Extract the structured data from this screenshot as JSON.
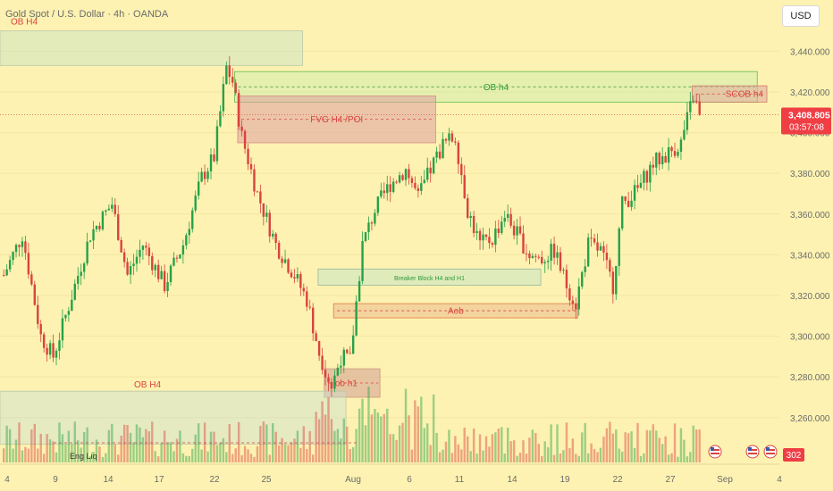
{
  "header": {
    "title": "Gold Spot / U.S. Dollar · 4h · OANDA",
    "currency": "USD"
  },
  "colors": {
    "background": "#fdf2b1",
    "up": "#26a14a",
    "down": "#d9433f",
    "price_label_bg": "#f03e45"
  },
  "price": {
    "last": "3,408.805",
    "countdown": "03:57:08"
  },
  "volume_badge": "302",
  "chart_data": {
    "type": "candlestick",
    "title": "Gold Spot / U.S. Dollar · 4h · OANDA",
    "timeframe": "4h",
    "ylim": [
      3245,
      3452
    ],
    "y_ticks": [
      3260,
      3280,
      3300,
      3320,
      3340,
      3360,
      3380,
      3400,
      3420,
      3440
    ],
    "y_tick_labels": [
      "3,260.000",
      "3,280.000",
      "3,300.000",
      "3,320.000",
      "3,340.000",
      "3,360.000",
      "3,380.000",
      "3,400.000",
      "3,420.000",
      "3,440.000"
    ],
    "x_labels": [
      "4",
      "9",
      "14",
      "17",
      "22",
      "25",
      "Aug",
      "6",
      "11",
      "14",
      "19",
      "22",
      "27",
      "Sep",
      "4"
    ],
    "last_price": 3408.805,
    "key_path": [
      {
        "bar": 0,
        "price": 3330
      },
      {
        "bar": 6,
        "price": 3350
      },
      {
        "bar": 12,
        "price": 3300
      },
      {
        "bar": 16,
        "price": 3290
      },
      {
        "bar": 22,
        "price": 3320
      },
      {
        "bar": 28,
        "price": 3350
      },
      {
        "bar": 35,
        "price": 3365
      },
      {
        "bar": 40,
        "price": 3330
      },
      {
        "bar": 45,
        "price": 3345
      },
      {
        "bar": 52,
        "price": 3325
      },
      {
        "bar": 58,
        "price": 3345
      },
      {
        "bar": 64,
        "price": 3378
      },
      {
        "bar": 68,
        "price": 3388
      },
      {
        "bar": 72,
        "price": 3432
      },
      {
        "bar": 74,
        "price": 3425
      },
      {
        "bar": 77,
        "price": 3398
      },
      {
        "bar": 82,
        "price": 3370
      },
      {
        "bar": 88,
        "price": 3345
      },
      {
        "bar": 94,
        "price": 3330
      },
      {
        "bar": 98,
        "price": 3318
      },
      {
        "bar": 102,
        "price": 3292
      },
      {
        "bar": 106,
        "price": 3275
      },
      {
        "bar": 109,
        "price": 3290
      },
      {
        "bar": 112,
        "price": 3288
      },
      {
        "bar": 116,
        "price": 3345
      },
      {
        "bar": 120,
        "price": 3362
      },
      {
        "bar": 125,
        "price": 3375
      },
      {
        "bar": 130,
        "price": 3382
      },
      {
        "bar": 134,
        "price": 3368
      },
      {
        "bar": 138,
        "price": 3382
      },
      {
        "bar": 142,
        "price": 3394
      },
      {
        "bar": 146,
        "price": 3398
      },
      {
        "bar": 150,
        "price": 3362
      },
      {
        "bar": 154,
        "price": 3345
      },
      {
        "bar": 158,
        "price": 3348
      },
      {
        "bar": 162,
        "price": 3360
      },
      {
        "bar": 166,
        "price": 3350
      },
      {
        "bar": 170,
        "price": 3340
      },
      {
        "bar": 174,
        "price": 3338
      },
      {
        "bar": 178,
        "price": 3342
      },
      {
        "bar": 182,
        "price": 3325
      },
      {
        "bar": 185,
        "price": 3316
      },
      {
        "bar": 189,
        "price": 3345
      },
      {
        "bar": 193,
        "price": 3342
      },
      {
        "bar": 197,
        "price": 3325
      },
      {
        "bar": 200,
        "price": 3365
      },
      {
        "bar": 205,
        "price": 3372
      },
      {
        "bar": 210,
        "price": 3385
      },
      {
        "bar": 215,
        "price": 3390
      },
      {
        "bar": 219,
        "price": 3395
      },
      {
        "bar": 223,
        "price": 3418
      },
      {
        "bar": 225,
        "price": 3408.8
      }
    ],
    "zones": [
      {
        "label": "OB H4",
        "kind": "ob_h4_top",
        "x0_bar": -3,
        "x1_bar": 97,
        "y_top": 3450,
        "y_bottom": 3433
      },
      {
        "label": "OB h4",
        "kind": "ob_h4_green",
        "x0_bar": 75,
        "x1_bar": 244,
        "y_top": 3430,
        "y_bottom": 3415
      },
      {
        "label": "SCOB h4",
        "kind": "scob_h4",
        "x0_bar": 223,
        "x1_bar": 248,
        "y_top": 3423,
        "y_bottom": 3415
      },
      {
        "label": "FVG H4 /POI",
        "kind": "fvg",
        "x0_bar": 76,
        "x1_bar": 140,
        "y_top": 3418,
        "y_bottom": 3395
      },
      {
        "label": "Breaker Block H4 and H1",
        "kind": "breaker",
        "x0_bar": 102,
        "x1_bar": 174,
        "y_top": 3333,
        "y_bottom": 3325
      },
      {
        "label": "Aob",
        "kind": "aob",
        "x0_bar": 107,
        "x1_bar": 186,
        "y_top": 3316,
        "y_bottom": 3309
      },
      {
        "label": "ob h1",
        "kind": "ob_h1",
        "x0_bar": 104,
        "x1_bar": 122,
        "y_top": 3284,
        "y_bottom": 3270
      },
      {
        "label": "OB H4",
        "kind": "ob_h4_bottom",
        "x0_bar": -3,
        "x1_bar": 111,
        "y_top": 3273,
        "y_bottom": 3247
      }
    ],
    "annotations": [
      "Eng Liq"
    ]
  }
}
